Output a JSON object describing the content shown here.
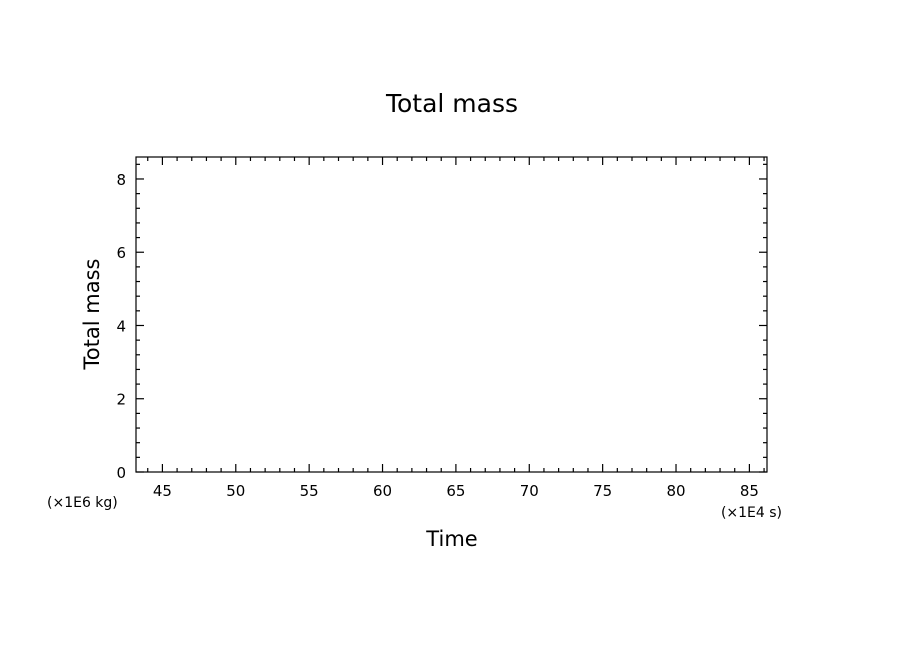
{
  "chart_data": {
    "type": "line",
    "title": "Total mass",
    "xlabel": "Time",
    "ylabel": "Total mass",
    "x_unit": "(×1E4 s)",
    "y_unit": "(×1E6 kg)",
    "xlim": [
      43.2,
      86.2
    ],
    "ylim": [
      0,
      8.6
    ],
    "x_ticks": [
      {
        "value": 45,
        "label": "45"
      },
      {
        "value": 50,
        "label": "50"
      },
      {
        "value": 55,
        "label": "55"
      },
      {
        "value": 60,
        "label": "60"
      },
      {
        "value": 65,
        "label": "65"
      },
      {
        "value": 70,
        "label": "70"
      },
      {
        "value": 75,
        "label": "75"
      },
      {
        "value": 80,
        "label": "80"
      },
      {
        "value": 85,
        "label": "85"
      }
    ],
    "y_ticks": [
      {
        "value": 0,
        "label": "0"
      },
      {
        "value": 2,
        "label": "2"
      },
      {
        "value": 4,
        "label": "4"
      },
      {
        "value": 6,
        "label": "6"
      },
      {
        "value": 8,
        "label": "8"
      }
    ],
    "x_minor_step": 1,
    "y_minor_step": 0.4,
    "series": [],
    "grid": false,
    "legend": "none",
    "colors": {
      "axis": "#000000",
      "background": "#ffffff"
    }
  }
}
